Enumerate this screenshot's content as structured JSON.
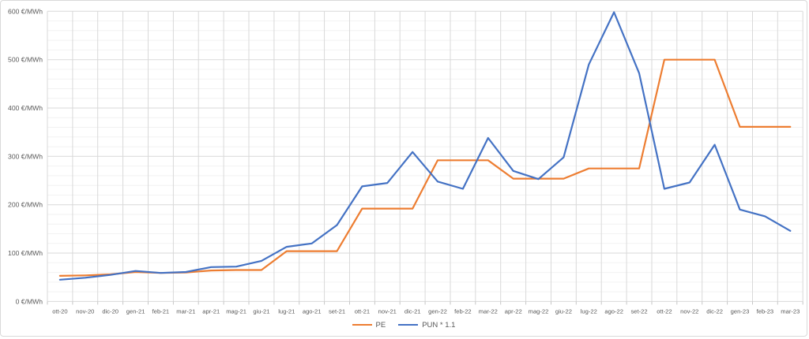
{
  "chart_data": {
    "type": "line",
    "title": "",
    "categories": [
      "ott-20",
      "nov-20",
      "dic-20",
      "gen-21",
      "feb-21",
      "mar-21",
      "apr-21",
      "mag-21",
      "giu-21",
      "lug-21",
      "ago-21",
      "set-21",
      "ott-21",
      "nov-21",
      "dic-21",
      "gen-22",
      "feb-22",
      "mar-22",
      "apr-22",
      "mag-22",
      "giu-22",
      "lug-22",
      "ago-22",
      "set-22",
      "ott-22",
      "nov-22",
      "dic-22",
      "gen-23",
      "feb-23",
      "mar-23"
    ],
    "series": [
      {
        "name": "PE",
        "color": "#ED7D31",
        "values": [
          53,
          54,
          56,
          61,
          59,
          60,
          64,
          65,
          65,
          104,
          104,
          104,
          192,
          192,
          192,
          292,
          292,
          292,
          254,
          254,
          254,
          275,
          275,
          275,
          500,
          500,
          500,
          361,
          361,
          361
        ]
      },
      {
        "name": "PUN * 1.1",
        "color": "#4472C4",
        "values": [
          45,
          49,
          55,
          63,
          59,
          61,
          71,
          72,
          84,
          113,
          120,
          158,
          238,
          245,
          309,
          248,
          233,
          338,
          270,
          253,
          298,
          490,
          598,
          472,
          233,
          246,
          324,
          190,
          176,
          146
        ]
      }
    ],
    "xlabel": "",
    "ylabel": "",
    "y_unit": "€/MWh",
    "ylim": [
      0,
      600
    ],
    "yticks": [
      0,
      100,
      200,
      300,
      400,
      500,
      600
    ],
    "ytick_labels": [
      "0 €/MWh",
      "100 €/MWh",
      "200 €/MWh",
      "300 €/MWh",
      "400 €/MWh",
      "500 €/MWh",
      "600 €/MWh"
    ],
    "minor_grid_step": 20,
    "grid": true,
    "legend_position": "bottom",
    "legend": [
      "PE",
      "PUN * 1.1"
    ]
  },
  "colors": {
    "series_pe": "#ED7D31",
    "series_pun": "#4472C4",
    "grid_major": "#D9D9D9",
    "grid_minor": "#F2F2F2",
    "tick_mark": "#C6C6C6",
    "axis_text": "#595959",
    "background": "#FFFFFF",
    "border": "#D9D9D9"
  }
}
